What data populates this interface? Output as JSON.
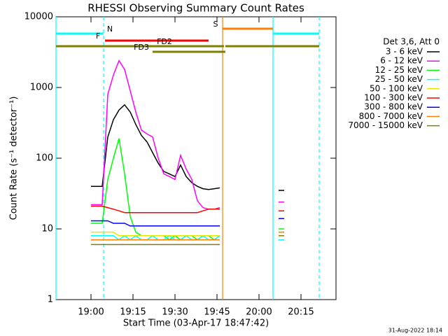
{
  "chart_data": {
    "type": "line",
    "title": "RHESSI Observing Summary Count Rates",
    "x_label": "Start Time (03-Apr-17 18:47:42)",
    "y_label": "Count Rate (s⁻¹ detector⁻¹)",
    "legend_title": "Det 3,6, Att 0",
    "footer": "31-Aug-2022 18:14",
    "log_y": true,
    "xlim": [
      1127.5,
      1227.5
    ],
    "xticks": [
      {
        "value": 1140,
        "label": "19:00"
      },
      {
        "value": 1155,
        "label": "19:15"
      },
      {
        "value": 1170,
        "label": "19:30"
      },
      {
        "value": 1185,
        "label": "19:45"
      },
      {
        "value": 1200,
        "label": "20:00"
      },
      {
        "value": 1215,
        "label": "20:15"
      }
    ],
    "ylim": [
      1,
      10000
    ],
    "yticks": [
      1,
      10,
      100,
      1000,
      10000
    ],
    "x": [
      1140,
      1142,
      1144,
      1146,
      1148,
      1150,
      1152,
      1154,
      1156,
      1158,
      1160,
      1162,
      1164,
      1166,
      1168,
      1170,
      1172,
      1174,
      1176,
      1178,
      1180,
      1182,
      1184,
      1186,
      1196,
      1207,
      1209
    ],
    "series": [
      {
        "name": "3 - 6 keV",
        "color": "#000000",
        "values": [
          40,
          40,
          40,
          200,
          350,
          480,
          570,
          450,
          300,
          210,
          170,
          120,
          85,
          65,
          60,
          55,
          80,
          55,
          45,
          40,
          37,
          36,
          37,
          38,
          null,
          35,
          35
        ]
      },
      {
        "name": "6 - 12 keV",
        "color": "#ff00ff",
        "values": [
          22,
          22,
          22,
          800,
          1500,
          2400,
          1800,
          900,
          450,
          250,
          220,
          200,
          100,
          60,
          55,
          50,
          110,
          70,
          50,
          25,
          20,
          19,
          19,
          20,
          null,
          24,
          24
        ]
      },
      {
        "name": "12 - 25 keV",
        "color": "#00ff00",
        "values": [
          12,
          12,
          12,
          50,
          100,
          190,
          60,
          15,
          9,
          8,
          8,
          8,
          8,
          8,
          7,
          8,
          7,
          8,
          8,
          7,
          8,
          8,
          7,
          8,
          null,
          10,
          10
        ]
      },
      {
        "name": "25 - 50 keV",
        "color": "#00ffff",
        "values": [
          8,
          8,
          8,
          8,
          8,
          7,
          8,
          7,
          8,
          7,
          7,
          8,
          7,
          7,
          8,
          7,
          7,
          8,
          7,
          7,
          8,
          7,
          7,
          8,
          null,
          7,
          7
        ]
      },
      {
        "name": "50 - 100 keV",
        "color": "#e6e600",
        "values": [
          9,
          9,
          9,
          9,
          9,
          8,
          8,
          8,
          8,
          8,
          8,
          8,
          8,
          8,
          8,
          8,
          8,
          8,
          8,
          8,
          8,
          8,
          8,
          8,
          null,
          9,
          9
        ]
      },
      {
        "name": "100 - 300 keV",
        "color": "#ff0000",
        "values": [
          21,
          21,
          21,
          20,
          19,
          18,
          17,
          17,
          17,
          17,
          17,
          17,
          17,
          17,
          17,
          17,
          17,
          17,
          17,
          17,
          18,
          19,
          19,
          19,
          null,
          18,
          18
        ]
      },
      {
        "name": "300 - 800 keV",
        "color": "#0000ff",
        "values": [
          13,
          13,
          13,
          13,
          12,
          12,
          12,
          11,
          11,
          11,
          11,
          11,
          11,
          11,
          11,
          11,
          11,
          11,
          11,
          11,
          11,
          11,
          11,
          11,
          null,
          14,
          14
        ]
      },
      {
        "name": "800 - 7000 keV",
        "color": "#ff8000",
        "values": [
          7,
          7,
          7,
          7,
          7,
          7,
          7,
          7,
          7,
          7,
          7,
          7,
          7,
          7,
          7,
          7,
          7,
          7,
          7,
          7,
          7,
          7,
          7,
          7,
          null,
          9,
          9
        ]
      },
      {
        "name": "7000 - 15000 keV",
        "color": "#808000",
        "values": [
          6,
          6,
          6,
          6,
          6,
          6,
          6,
          6,
          6,
          6,
          6,
          6,
          6,
          6,
          6,
          6,
          6,
          6,
          6,
          6,
          6,
          6,
          6,
          6,
          null,
          8,
          8
        ]
      }
    ],
    "flags": [
      {
        "label": "N",
        "color": "#00ffff",
        "segments": [
          [
            1127.5,
            1144.5
          ],
          [
            1205,
            1221.5
          ]
        ]
      },
      {
        "label": "S",
        "color": "#ff8000",
        "segments": [
          [
            1187,
            1205
          ]
        ]
      },
      {
        "label": "F",
        "color": "#ff0000",
        "segments": [
          [
            1145,
            1182
          ]
        ]
      },
      {
        "label": "FD2",
        "color": "#808000",
        "segments": [
          [
            1127.5,
            1187.5
          ],
          [
            1188,
            1221.5
          ]
        ]
      },
      {
        "label": "FD3",
        "color": "#808000",
        "segments": [
          [
            1162,
            1188
          ]
        ]
      }
    ],
    "vlines": [
      {
        "x": 1127.5,
        "color": "#00ffff",
        "dashed": false
      },
      {
        "x": 1144.5,
        "color": "#00ffff",
        "dashed": true
      },
      {
        "x": 1187,
        "color": "#ff8000",
        "dashed": false
      },
      {
        "x": 1205,
        "color": "#00ffff",
        "dashed": false
      },
      {
        "x": 1221.5,
        "color": "#00ffff",
        "dashed": true
      }
    ]
  }
}
